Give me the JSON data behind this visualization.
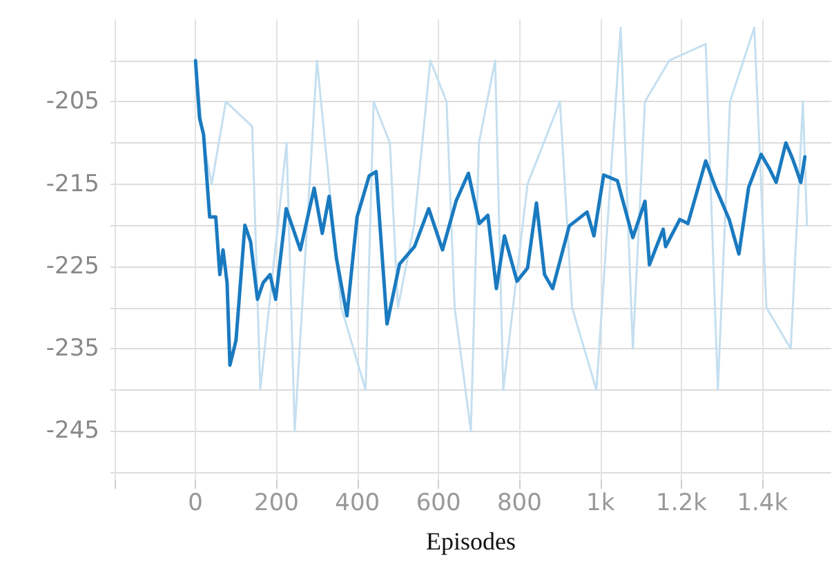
{
  "chart_data": {
    "type": "line",
    "xlabel": "Episodes",
    "xlim": [
      -210,
      1570
    ],
    "xticks": [
      {
        "value": -200,
        "label": null
      },
      0,
      200,
      400,
      600,
      800,
      {
        "value": 1000,
        "label": "1k"
      },
      {
        "value": 1200,
        "label": "1.2k"
      },
      {
        "value": 1400,
        "label": "1.4k"
      }
    ],
    "ylim": [
      -251,
      -195
    ],
    "yticks": [
      {
        "value": -250,
        "label": null
      },
      -245,
      {
        "value": -240,
        "label": null
      },
      -235,
      {
        "value": -230,
        "label": null
      },
      -225,
      {
        "value": -220,
        "label": null
      },
      -215,
      {
        "value": -210,
        "label": null
      },
      -205,
      {
        "value": -200,
        "label": null
      }
    ],
    "grid": true,
    "marker": "none",
    "line_style": "solid",
    "series": [
      {
        "color": "#c4dff0",
        "x": [
          0,
          20,
          40,
          60,
          75,
          90,
          105,
          120,
          140,
          160,
          180,
          200,
          225,
          245,
          260,
          280,
          300,
          320,
          340,
          360,
          380,
          400,
          420,
          440,
          460,
          480,
          500,
          520,
          540,
          560,
          580,
          600,
          620,
          640,
          660,
          680,
          700,
          720,
          740,
          760,
          780,
          800,
          820,
          840,
          860,
          880,
          900,
          930,
          960,
          990,
          1020,
          1050,
          1080,
          1110,
          1140,
          1170,
          1200,
          1230,
          1260,
          1290,
          1320,
          1350,
          1380,
          1410,
          1440,
          1470,
          1500,
          1510
        ],
        "values": [
          -200,
          -210,
          -215,
          null,
          -205,
          null,
          null,
          null,
          -208,
          -240,
          null,
          null,
          -210,
          -245,
          null,
          null,
          -200,
          null,
          null,
          -230,
          null,
          null,
          -240,
          -205,
          null,
          -210,
          -230,
          null,
          -220,
          null,
          -200,
          null,
          -205,
          -230,
          null,
          -245,
          -210,
          null,
          -200,
          -240,
          null,
          null,
          -215,
          null,
          null,
          null,
          -205,
          -230,
          null,
          -240,
          null,
          -196,
          -235,
          -205,
          null,
          -200,
          null,
          null,
          -198,
          -240,
          -205,
          null,
          -196,
          -230,
          null,
          -235,
          -205,
          -220
        ]
      },
      {
        "color": "#1a7ac0",
        "x": [
          0,
          10,
          20,
          35,
          50,
          60,
          68,
          78,
          85,
          100,
          122,
          136,
          153,
          167,
          184,
          198,
          224,
          259,
          293,
          313,
          330,
          348,
          374,
          399,
          429,
          446,
          473,
          504,
          541,
          576,
          610,
          644,
          674,
          701,
          722,
          743,
          763,
          794,
          820,
          842,
          862,
          882,
          923,
          967,
          984,
          1008,
          1042,
          1080,
          1110,
          1121,
          1155,
          1161,
          1196,
          1216,
          1260,
          1284,
          1318,
          1342,
          1366,
          1397,
          1417,
          1434,
          1458,
          1475,
          1495,
          1505
        ],
        "values": [
          -200,
          -207,
          -209,
          -219,
          -219,
          -226,
          -223,
          -227,
          -237,
          -234,
          -220,
          -222,
          -229,
          -227,
          -226,
          -229,
          -218,
          -223,
          -215.5,
          -221,
          -216.5,
          -224,
          -231,
          -219,
          -214,
          -213.5,
          -232,
          -224.7,
          -222.6,
          -218,
          -223,
          -217,
          -213.7,
          -219.8,
          -218.8,
          -227.7,
          -221.3,
          -226.8,
          -225.2,
          -217.3,
          -226,
          -227.7,
          -220.1,
          -218.4,
          -221.3,
          -213.9,
          -214.6,
          -221.5,
          -217.1,
          -224.8,
          -220.5,
          -222.6,
          -219.3,
          -219.8,
          -212.2,
          -215.4,
          -219.3,
          -223.5,
          -215.4,
          -211.4,
          -213.1,
          -214.8,
          -210,
          -212,
          -214.8,
          -211.7
        ]
      }
    ]
  }
}
